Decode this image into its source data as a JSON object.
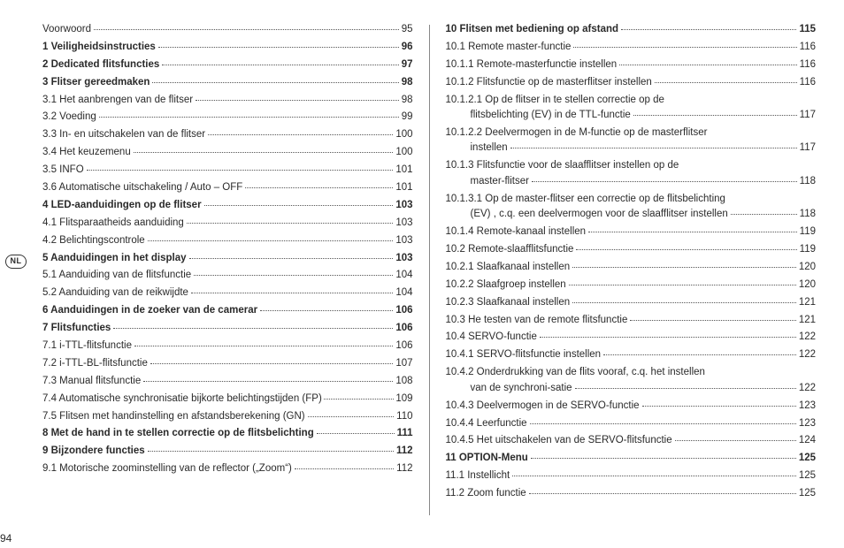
{
  "pageNumber": "94",
  "langBadge": "NL",
  "left": [
    {
      "t": "Voorwoord",
      "p": "95",
      "b": false
    },
    {
      "t": "1 Veiligheidsinstructies",
      "p": "96",
      "b": true
    },
    {
      "t": "2 Dedicated flitsfuncties",
      "p": "97",
      "b": true
    },
    {
      "t": "3 Flitser gereedmaken",
      "p": "98",
      "b": true
    },
    {
      "t": "3.1 Het aanbrengen van de flitser",
      "p": "98",
      "b": false
    },
    {
      "t": "3.2 Voeding",
      "p": "99",
      "b": false
    },
    {
      "t": "3.3 In- en uitschakelen van de flitser",
      "p": "100",
      "b": false
    },
    {
      "t": "3.4 Het keuzemenu",
      "p": "100",
      "b": false
    },
    {
      "t": "3.5 INFO",
      "p": "101",
      "b": false
    },
    {
      "t": "3.6 Automatische uitschakeling / Auto – OFF",
      "p": "101",
      "b": false
    },
    {
      "t": "4 LED-aanduidingen op de flitser",
      "p": "103",
      "b": true
    },
    {
      "t": "4.1 Flitsparaatheids aanduiding",
      "p": "103",
      "b": false
    },
    {
      "t": "4.2 Belichtingscontrole",
      "p": "103",
      "b": false
    },
    {
      "t": "5 Aanduidingen in het display",
      "p": "103",
      "b": true
    },
    {
      "t": "5.1 Aanduiding van de flitsfunctie",
      "p": "104",
      "b": false
    },
    {
      "t": "5.2 Aanduiding van de reikwijdte",
      "p": "104",
      "b": false
    },
    {
      "t": "6 Aanduidingen in de zoeker van de camerar",
      "p": "106",
      "b": true
    },
    {
      "t": "7 Flitsfuncties",
      "p": "106",
      "b": true
    },
    {
      "t": "7.1 i-TTL-flitsfunctie",
      "p": "106",
      "b": false
    },
    {
      "t": "7.2 i-TTL-BL-flitsfunctie",
      "p": "107",
      "b": false
    },
    {
      "t": "7.3 Manual flitsfunctie",
      "p": "108",
      "b": false
    },
    {
      "t": "7.4 Automatische synchronisatie bijkorte belichtingstijden (FP)",
      "p": "109",
      "b": false,
      "tight": true
    },
    {
      "t": "7.5 Flitsen met handinstelling en afstandsberekening (GN)",
      "p": "110",
      "b": false
    },
    {
      "t": "8 Met de hand in te stellen correctie op de flitsbelichting",
      "p": "111",
      "b": true
    },
    {
      "t": "9 Bijzondere functies",
      "p": "112",
      "b": true
    },
    {
      "t": "9.1 Motorische zoominstelling van de reflector („Zoom“)",
      "p": "112",
      "b": false
    }
  ],
  "right": [
    {
      "t": "10 Flitsen met bediening op afstand",
      "p": "115",
      "b": true
    },
    {
      "t": "10.1 Remote master-functie",
      "p": "116",
      "b": false
    },
    {
      "t": "10.1.1 Remote-masterfunctie instellen",
      "p": "116",
      "b": false
    },
    {
      "t": "10.1.2 Flitsfunctie op de masterflitser instellen",
      "p": "116",
      "b": false
    },
    {
      "t": "10.1.2.1 Op de flitser in te stellen correctie op de",
      "t2": "flitsbelichting (EV) in de TTL-functie",
      "p": "117",
      "b": false,
      "ml": true
    },
    {
      "t": "10.1.2.2 Deelvermogen in de M-functie op de masterflitser",
      "t2": "instellen",
      "p": "117",
      "b": false,
      "ml": true
    },
    {
      "t": "10.1.3 Flitsfunctie voor de slaafflitser instellen op de",
      "t2": "master-flitser",
      "p": "118",
      "b": false,
      "ml": true
    },
    {
      "t": "10.1.3.1 Op de master-flitser een correctie op de flitsbelichting",
      "t2": "(EV) , c.q. een deelvermogen voor de slaafflitser instellen",
      "p": "118",
      "b": false,
      "ml": true,
      "tight": true
    },
    {
      "t": "10.1.4 Remote-kanaal instellen",
      "p": "119",
      "b": false
    },
    {
      "t": "10.2 Remote-slaafflitsfunctie",
      "p": "119",
      "b": false
    },
    {
      "t": "10.2.1 Slaafkanaal instellen",
      "p": "120",
      "b": false
    },
    {
      "t": "10.2.2 Slaafgroep instellen",
      "p": "120",
      "b": false
    },
    {
      "t": "10.2.3 Slaafkanaal instellen",
      "p": "121",
      "b": false
    },
    {
      "t": "10.3 He testen van de remote flitsfunctie",
      "p": "121",
      "b": false
    },
    {
      "t": "10.4 SERVO-functie",
      "p": "122",
      "b": false
    },
    {
      "t": "10.4.1 SERVO-flitsfunctie  instellen",
      "p": "122",
      "b": false
    },
    {
      "t": "10.4.2 Onderdrukking van de flits vooraf, c.q. het instellen",
      "t2": "van de synchroni-satie",
      "p": "122",
      "b": false,
      "ml": true
    },
    {
      "t": "10.4.3 Deelvermogen in de SERVO-functie",
      "p": "123",
      "b": false
    },
    {
      "t": "10.4.4 Leerfunctie",
      "p": "123",
      "b": false
    },
    {
      "t": "10.4.5 Het uitschakelen van de SERVO-flitsfunctie",
      "p": "124",
      "b": false
    },
    {
      "t": "11 OPTION-Menu",
      "p": "125",
      "b": true
    },
    {
      "t": "11.1 Instellicht",
      "p": "125",
      "b": false
    },
    {
      "t": "11.2 Zoom functie",
      "p": "125",
      "b": false
    }
  ]
}
